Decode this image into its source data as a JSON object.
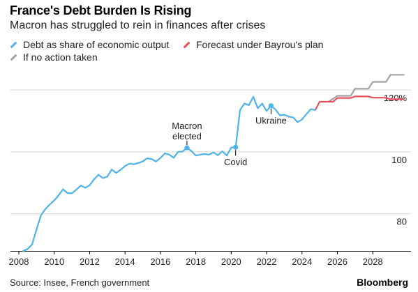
{
  "title": "France's Debt Burden Is Rising",
  "subtitle": "Macron has struggled to rein in finances after crises",
  "legend": [
    {
      "label": "Debt as share of economic output",
      "color": "#4db3ea"
    },
    {
      "label": "Forecast under Bayrou's plan",
      "color": "#e8505b"
    },
    {
      "label": "If no action taken",
      "color": "#a2a2a2"
    }
  ],
  "source": "Source: Insee, French government",
  "brand": "Bloomberg",
  "chart_data": {
    "type": "line",
    "xlim": [
      2008,
      2030.2
    ],
    "ylim": [
      68,
      127
    ],
    "xticks": [
      2008,
      2010,
      2012,
      2014,
      2016,
      2018,
      2020,
      2022,
      2024,
      2026,
      2028
    ],
    "yticks": [
      {
        "value": 80,
        "label": "80"
      },
      {
        "value": 100,
        "label": "100"
      },
      {
        "value": 120,
        "label": "120%"
      }
    ],
    "grid": "horizontal",
    "annotations": [
      {
        "label": "Macron\nelected",
        "x": 2017.5,
        "y": 101.3,
        "label_position": "above"
      },
      {
        "label": "Covid",
        "x": 2020.25,
        "y": 101.5,
        "label_position": "below"
      },
      {
        "label": "Ukraine",
        "x": 2022.25,
        "y": 114.9,
        "label_position": "below"
      }
    ],
    "series": [
      {
        "name": "Debt as share of economic output",
        "color": "#4db3ea",
        "points": [
          [
            2008.25,
            68.0
          ],
          [
            2008.5,
            68.6
          ],
          [
            2008.75,
            70.1
          ],
          [
            2009.0,
            75.0
          ],
          [
            2009.25,
            79.5
          ],
          [
            2009.5,
            81.5
          ],
          [
            2009.75,
            83.0
          ],
          [
            2010.0,
            84.3
          ],
          [
            2010.25,
            86.0
          ],
          [
            2010.5,
            87.9
          ],
          [
            2010.75,
            86.7
          ],
          [
            2011.0,
            86.6
          ],
          [
            2011.25,
            87.8
          ],
          [
            2011.5,
            89.1
          ],
          [
            2011.75,
            88.4
          ],
          [
            2012.0,
            89.2
          ],
          [
            2012.25,
            91.1
          ],
          [
            2012.5,
            92.6
          ],
          [
            2012.75,
            91.5
          ],
          [
            2013.0,
            92.0
          ],
          [
            2013.25,
            94.3
          ],
          [
            2013.5,
            93.2
          ],
          [
            2013.75,
            94.2
          ],
          [
            2014.0,
            95.4
          ],
          [
            2014.25,
            96.2
          ],
          [
            2014.5,
            96.0
          ],
          [
            2014.75,
            96.4
          ],
          [
            2015.0,
            96.9
          ],
          [
            2015.25,
            97.9
          ],
          [
            2015.5,
            97.7
          ],
          [
            2015.75,
            96.9
          ],
          [
            2016.0,
            98.0
          ],
          [
            2016.25,
            99.5
          ],
          [
            2016.5,
            99.1
          ],
          [
            2016.75,
            98.1
          ],
          [
            2017.0,
            100.0
          ],
          [
            2017.25,
            100.1
          ],
          [
            2017.5,
            101.3
          ],
          [
            2017.75,
            100.3
          ],
          [
            2018.0,
            98.8
          ],
          [
            2018.25,
            99.1
          ],
          [
            2018.5,
            99.3
          ],
          [
            2018.75,
            99.1
          ],
          [
            2019.0,
            99.8
          ],
          [
            2019.25,
            98.9
          ],
          [
            2019.5,
            100.2
          ],
          [
            2019.75,
            98.8
          ],
          [
            2020.0,
            101.4
          ],
          [
            2020.25,
            101.5
          ],
          [
            2020.5,
            113.5
          ],
          [
            2020.75,
            115.6
          ],
          [
            2021.0,
            115.1
          ],
          [
            2021.25,
            117.8
          ],
          [
            2021.5,
            114.1
          ],
          [
            2021.75,
            115.6
          ],
          [
            2022.0,
            113.2
          ],
          [
            2022.25,
            114.9
          ],
          [
            2022.5,
            113.7
          ],
          [
            2022.75,
            111.8
          ],
          [
            2023.0,
            112.0
          ],
          [
            2023.25,
            111.4
          ],
          [
            2023.5,
            111.1
          ],
          [
            2023.75,
            109.6
          ],
          [
            2024.0,
            110.5
          ],
          [
            2024.25,
            112.2
          ],
          [
            2024.5,
            113.8
          ],
          [
            2024.75,
            113.5
          ]
        ]
      },
      {
        "name": "Forecast under Bayrou's plan",
        "color": "#e8505b",
        "points": [
          [
            2024.75,
            113.5
          ],
          [
            2025.0,
            116.2
          ],
          [
            2025.75,
            116.2
          ],
          [
            2026.0,
            117.4
          ],
          [
            2026.75,
            117.4
          ],
          [
            2027.0,
            117.9
          ],
          [
            2027.75,
            117.9
          ],
          [
            2028.0,
            117.5
          ],
          [
            2028.75,
            117.5
          ],
          [
            2029.0,
            117.0
          ],
          [
            2029.75,
            117.0
          ]
        ]
      },
      {
        "name": "If no action taken",
        "color": "#a2a2a2",
        "points": [
          [
            2025.5,
            116.2
          ],
          [
            2026.0,
            118.1
          ],
          [
            2026.75,
            118.1
          ],
          [
            2027.0,
            120.4
          ],
          [
            2027.75,
            120.4
          ],
          [
            2028.0,
            122.6
          ],
          [
            2028.75,
            122.6
          ],
          [
            2029.0,
            124.9
          ],
          [
            2029.75,
            124.9
          ]
        ]
      }
    ]
  }
}
